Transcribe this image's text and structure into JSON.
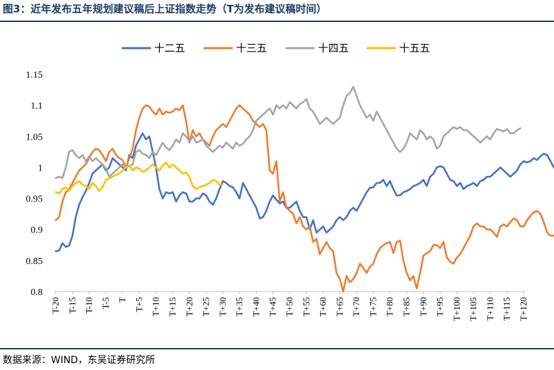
{
  "figure": {
    "title": "图3：近年发布五年规划建议稿后上证指数走势（T为发布建议稿时间）",
    "source": "数据来源：WIND，东吴证券研究所"
  },
  "chart_data": {
    "type": "line",
    "title": "图3：近年发布五年规划建议稿后上证指数走势（T为发布建议稿时间）",
    "xlabel": "",
    "ylabel": "",
    "ylim": [
      0.8,
      1.15
    ],
    "yticks": [
      0.8,
      0.85,
      0.9,
      0.95,
      1.0,
      1.05,
      1.1,
      1.15
    ],
    "ytick_labels": [
      "0.8",
      "0.85",
      "0.9",
      "0.95",
      "1",
      "1.05",
      "1.1",
      "1.15"
    ],
    "xlim": [
      -20,
      120
    ],
    "xticks": [
      -20,
      -15,
      -10,
      -5,
      0,
      5,
      10,
      15,
      20,
      25,
      30,
      35,
      40,
      45,
      50,
      55,
      60,
      65,
      70,
      75,
      80,
      85,
      90,
      95,
      100,
      105,
      110,
      115,
      120
    ],
    "xtick_labels": [
      "T-20",
      "T-15",
      "T-10",
      "T-5",
      "T",
      "T+5",
      "T+10",
      "T+15",
      "T+20",
      "T+25",
      "T+30",
      "T+35",
      "T+40",
      "T+45",
      "T+50",
      "T+55",
      "T+60",
      "T+65",
      "T+70",
      "T+75",
      "T+80",
      "T+85",
      "T+90",
      "T+95",
      "T+100",
      "T+105",
      "T+110",
      "T+115",
      "T+120"
    ],
    "legend_position": "top-center",
    "grid": false,
    "series": [
      {
        "name": "十二五",
        "color": "#4472c4",
        "x_start": -20,
        "values": [
          0.865,
          0.866,
          0.878,
          0.872,
          0.874,
          0.89,
          0.92,
          0.94,
          0.952,
          0.962,
          0.975,
          0.99,
          0.995,
          1.0,
          1.005,
          0.995,
          1.0,
          1.015,
          1.01,
          1.005,
          1.0,
          0.995,
          1.02,
          1.015,
          1.035,
          1.045,
          1.055,
          1.045,
          1.05,
          1.025,
          1.0,
          0.965,
          0.95,
          0.96,
          0.958,
          0.96,
          0.945,
          0.955,
          0.96,
          0.958,
          0.945,
          0.945,
          0.95,
          0.95,
          0.958,
          0.955,
          0.945,
          0.94,
          0.95,
          0.965,
          0.978,
          0.975,
          0.97,
          0.968,
          0.96,
          0.95,
          0.975,
          0.965,
          0.955,
          0.945,
          0.935,
          0.918,
          0.92,
          0.93,
          0.945,
          0.955,
          0.948,
          0.942,
          0.945,
          0.935,
          0.935,
          0.94,
          0.945,
          0.93,
          0.92,
          0.92,
          0.9,
          0.915,
          0.895,
          0.9,
          0.905,
          0.895,
          0.9,
          0.905,
          0.915,
          0.92,
          0.915,
          0.92,
          0.93,
          0.935,
          0.93,
          0.94,
          0.95,
          0.96,
          0.967,
          0.968,
          0.975,
          0.975,
          0.98,
          0.97,
          0.978,
          0.965,
          0.955,
          0.955,
          0.96,
          0.962,
          0.965,
          0.97,
          0.972,
          0.975,
          0.98,
          0.97,
          0.985,
          0.99,
          1.0,
          1.002,
          1.0,
          0.99,
          0.98,
          0.978,
          0.97,
          0.975,
          0.965,
          0.97,
          0.972,
          0.975,
          0.97,
          0.978,
          0.98,
          0.985,
          0.985,
          0.99,
          0.995,
          1.0,
          0.995,
          0.99,
          0.985,
          0.99,
          0.995,
          1.005,
          1.01,
          1.008,
          1.01,
          1.015,
          1.012,
          1.018,
          1.022,
          1.02,
          1.01,
          1.0,
          1.005,
          1.01,
          1.0,
          0.99,
          0.982
        ]
      },
      {
        "name": "十三五",
        "color": "#ed7d31",
        "x_start": -20,
        "values": [
          0.915,
          0.92,
          0.945,
          0.96,
          0.965,
          0.975,
          0.985,
          0.995,
          1.0,
          1.005,
          1.015,
          1.025,
          1.03,
          1.028,
          1.02,
          1.01,
          1.025,
          1.03,
          1.02,
          1.015,
          1.012,
          1.0,
          1.015,
          1.03,
          1.06,
          1.08,
          1.095,
          1.1,
          1.098,
          1.09,
          1.085,
          1.095,
          1.085,
          1.09,
          1.088,
          1.09,
          1.095,
          1.092,
          1.1,
          1.075,
          1.04,
          1.06,
          1.05,
          1.055,
          1.045,
          1.04,
          1.035,
          1.05,
          1.06,
          1.065,
          1.07,
          1.065,
          1.075,
          1.085,
          1.095,
          1.1,
          1.095,
          1.09,
          1.085,
          1.075,
          1.07,
          1.065,
          1.07,
          1.06,
          0.995,
          0.99,
          1.01,
          0.945,
          0.96,
          0.935,
          0.93,
          0.925,
          0.91,
          0.92,
          0.905,
          0.9,
          0.905,
          0.88,
          0.885,
          0.86,
          0.87,
          0.88,
          0.87,
          0.865,
          0.83,
          0.82,
          0.8,
          0.825,
          0.815,
          0.82,
          0.83,
          0.845,
          0.838,
          0.83,
          0.84,
          0.845,
          0.86,
          0.87,
          0.875,
          0.878,
          0.88,
          0.862,
          0.88,
          0.882,
          0.85,
          0.83,
          0.818,
          0.825,
          0.805,
          0.83,
          0.858,
          0.862,
          0.865,
          0.875,
          0.875,
          0.87,
          0.88,
          0.855,
          0.848,
          0.845,
          0.855,
          0.86,
          0.87,
          0.88,
          0.89,
          0.905,
          0.91,
          0.905,
          0.905,
          0.9,
          0.9,
          0.895,
          0.888,
          0.905,
          0.908,
          0.905,
          0.912,
          0.918,
          0.915,
          0.905,
          0.905,
          0.915,
          0.922,
          0.928,
          0.93,
          0.925,
          0.912,
          0.895,
          0.89,
          0.89,
          0.888,
          0.892,
          0.888,
          0.885,
          0.888
        ]
      },
      {
        "name": "十四五",
        "color": "#a5a5a5",
        "x_start": -20,
        "values": [
          0.983,
          0.985,
          0.983,
          1.0,
          1.025,
          1.028,
          1.02,
          1.015,
          1.02,
          1.01,
          1.018,
          1.01,
          1.015,
          1.01,
          1.005,
          0.998,
          0.985,
          0.99,
          0.995,
          1.0,
          1.005,
          1.0,
          1.002,
          1.005,
          1.025,
          1.028,
          1.022,
          1.02,
          1.015,
          1.025,
          1.02,
          1.03,
          1.04,
          1.032,
          1.028,
          1.035,
          1.045,
          1.04,
          1.055,
          1.05,
          1.042,
          1.05,
          1.04,
          1.042,
          1.045,
          1.035,
          1.03,
          1.025,
          1.03,
          1.035,
          1.032,
          1.04,
          1.035,
          1.03,
          1.04,
          1.035,
          1.038,
          1.045,
          1.05,
          1.06,
          1.075,
          1.08,
          1.085,
          1.09,
          1.095,
          1.085,
          1.1,
          1.095,
          1.1,
          1.095,
          1.105,
          1.1,
          1.095,
          1.102,
          1.105,
          1.11,
          1.095,
          1.09,
          1.08,
          1.07,
          1.075,
          1.08,
          1.075,
          1.07,
          1.075,
          1.08,
          1.1,
          1.115,
          1.12,
          1.13,
          1.115,
          1.1,
          1.09,
          1.08,
          1.085,
          1.075,
          1.09,
          1.08,
          1.07,
          1.06,
          1.05,
          1.04,
          1.03,
          1.025,
          1.03,
          1.04,
          1.055,
          1.05,
          1.045,
          1.06,
          1.055,
          1.045,
          1.05,
          1.045,
          1.03,
          1.035,
          1.05,
          1.055,
          1.06,
          1.065,
          1.062,
          1.065,
          1.06,
          1.06,
          1.055,
          1.05,
          1.045,
          1.04,
          1.045,
          1.05,
          1.045,
          1.055,
          1.062,
          1.06,
          1.058,
          1.062,
          1.055,
          1.055,
          1.06,
          1.063
        ]
      },
      {
        "name": "十五五",
        "color": "#ffc000",
        "x_start": -20,
        "values": [
          0.96,
          0.958,
          0.965,
          0.968,
          0.962,
          0.97,
          0.975,
          0.978,
          0.972,
          0.97,
          0.965,
          0.975,
          0.97,
          0.962,
          0.968,
          0.98,
          0.982,
          0.985,
          0.988,
          0.99,
          0.995,
          1.0,
          1.003,
          0.995,
          1.0,
          0.998,
          0.993,
          0.995,
          1.0,
          1.005,
          1.0,
          0.995,
          1.003,
          1.008,
          1.0,
          1.005,
          1.0,
          0.995,
          0.99,
          0.992,
          0.985,
          0.97,
          0.965,
          0.968,
          0.97,
          0.972,
          0.975,
          0.98,
          0.978,
          0.972,
          0.973
        ]
      }
    ]
  }
}
